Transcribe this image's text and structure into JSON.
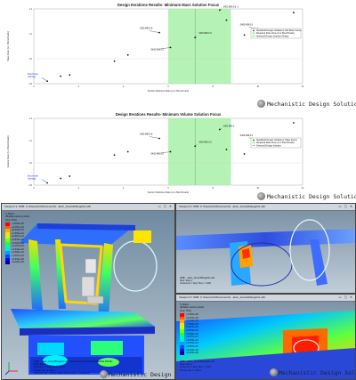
{
  "watermark_text": "Mechanistic Design Solutions",
  "charts": [
    {
      "title": "Design Iterations Results- Minimum Mass Solution Focus",
      "xlabel": "Section Modulus Ratio (to 1 Benchmark)",
      "ylabel": "Mass Ratio (to 1 Benchmark)",
      "benchmark_label": "Benchmark\n(starting)",
      "legend": [
        "Stackfield Design Variations: Min Mass Focus",
        "Required Pass Zone (to 1 Benchmark)",
        "Selected Design Solution Design"
      ],
      "point_labels": [
        "S400 M90 0.8 -1",
        "S400 M96 0.8",
        "S300 M95 0.8",
        "S400 M96 0.2",
        "S400 M96 0.8"
      ]
    },
    {
      "title": "Design Iterations Results- Minimum Volume Solution Focus",
      "xlabel": "Section Modulus Ratio (to 1 Benchmark)",
      "ylabel": "Volume Ratio (to 1 Benchmark)",
      "benchmark_label": "Benchmark\n(starting)",
      "legend": [
        "Stackfield Design Variations: Mass Focus",
        "Required Pass Zone (to 1 Benchmark)",
        "Selected Design Solution"
      ],
      "point_labels": [
        "S400 M90 2",
        "S400 M90 0.8",
        "S400 M96 0.8",
        "S400 M90 0.8",
        "S400 M96 0.2"
      ]
    }
  ],
  "chart_data": [
    {
      "type": "scatter",
      "title": "Design Iterations Results- Minimum Mass Solution Focus",
      "xlabel": "Section Modulus Ratio (to 1 Benchmark)",
      "ylabel": "Mass Ratio (to 1 Benchmark)",
      "xlim": [
        0,
        12
      ],
      "ylim": [
        0.8,
        1.4
      ],
      "series": [
        {
          "name": "Stackfield Design Variations: Min Mass Focus",
          "x": [
            0.6,
            1.2,
            1.6,
            3.6,
            4.2,
            5.6,
            6.1,
            7.2,
            8.3,
            8.6,
            9.4,
            10.0,
            11.6
          ],
          "y": [
            0.82,
            0.86,
            0.87,
            0.98,
            1.03,
            1.21,
            1.09,
            1.17,
            1.39,
            1.31,
            1.19,
            1.24,
            1.37
          ]
        }
      ],
      "pass_zone_x": [
        6.0,
        8.8
      ]
    },
    {
      "type": "scatter",
      "title": "Design Iterations Results- Minimum Volume Solution Focus",
      "xlabel": "Section Modulus Ratio (to 1 Benchmark)",
      "ylabel": "Volume Ratio (to 1 Benchmark)",
      "xlim": [
        0,
        12
      ],
      "ylim": [
        0.8,
        1.4
      ],
      "series": [
        {
          "name": "Stackfield Design Variations: Mass Focus",
          "x": [
            0.6,
            1.2,
            1.6,
            3.6,
            4.2,
            5.6,
            6.1,
            7.2,
            8.3,
            8.6,
            9.4,
            10.0,
            11.6
          ],
          "y": [
            0.82,
            0.86,
            0.88,
            1.07,
            1.1,
            1.22,
            1.1,
            1.15,
            1.3,
            1.12,
            1.08,
            1.21,
            1.36
          ]
        }
      ],
      "pass_zone_x": [
        6.0,
        8.8
      ]
    }
  ],
  "viewports": {
    "main": {
      "title": "Viewport 1: ODB: C:/Users/eric/Documents/...ation_stress4Rangehis.odb",
      "connected": "Connected to: SIEMENS",
      "legend_title": "S, Mises\n(Multiple section points)\n(Avg: 75%)",
      "legend_values": [
        "+1.000e+02",
        "+9.167e+01",
        "+8.333e+01",
        "+7.500e+01",
        "+6.667e+01",
        "+5.833e+01",
        "+5.000e+01",
        "+4.167e+01",
        "+3.333e+01",
        "+2.500e+01",
        "+1.667e+01",
        "+8.333e+00",
        "+0.000e+00"
      ],
      "footer": [
        "ODB: ...ation_stress4Rangehis.odb  Abaqus/Standard 3DEXPERIENCE R2019x",
        "Step: Step-1",
        "Increment 1: Step Time = 1.000",
        "Primary Var: S, Mises",
        "Deformed Var: U  Deformation Scale Factor: +1.000e+00"
      ]
    },
    "top_right": {
      "title": "Viewport 2: ODB: C:/Users/eric/Documents/...ation_stress4Rangehis.odb",
      "connected": "Connected to: SIEMENS",
      "footer": [
        "ODB: ...ation_stress4Rangehis.odb",
        "Step: Step-1",
        "Increment 1: Step Time = 1.000"
      ]
    },
    "bottom_right": {
      "title": "Viewport 3: ODB: C:/Users/eric/Documents/...ation_stress4Rangehis.odb",
      "connected": "Connected to: SIEMENS",
      "legend_title": "S, Mises\n(Multiple section points)\n(Avg: 75%)",
      "footer": [
        "ODB: ...ation_stress4Rangehis.odb",
        "Step: Step-1",
        "Increment 1: Step Time = 1.000",
        "Primary Var: S, Mises"
      ]
    }
  },
  "colors": {
    "pass_zone": "#a8f0a8",
    "fea_palette": [
      "#ff0000",
      "#ff5a00",
      "#ffaa00",
      "#ffe000",
      "#c8ff00",
      "#7cff00",
      "#22ff40",
      "#00ff9a",
      "#00e8e8",
      "#00a0ff",
      "#0050ff",
      "#0010e0",
      "#0000a8"
    ]
  }
}
